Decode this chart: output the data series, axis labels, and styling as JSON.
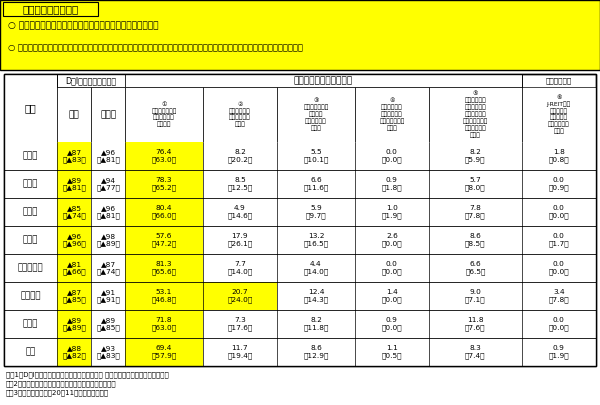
{
  "title": "中小企業の資金繰り",
  "bullet1": "○ 中小企業の資金繰りも、一段と厳しいものとなっている。",
  "bullet2": "○ 要因としては、「営業要因」が最も大きく、その割合は前回よりも上昇。次いで、「金融機関の融資態度・融資条件」が続く。",
  "di_header": "D．I．（良い－悪い）",
  "worsening_header": "悪化の要因（回答割合）",
  "unit": "（単位：％）",
  "sub_headers": [
    "①\n販売不振・在庫\nの長期化等、\n営業要因",
    "②\n融資審査等、\n金融機関の融\n資態度",
    "③\n融資期間・返済\n条件等、\n金融機関の融\n資条件",
    "④\n改正貸金業法\n施行の影響等\nノンバンクの融\n資態度",
    "⑤\n信用保証協会\nや政策金融機\n関等による、\nセーフティネッ\nト貸付・保証\nの動向",
    "⑥\nJ-REIT等証\n券市場の冷\nえ込みや投\n資ファンド等\nの動き"
  ],
  "rows": [
    {
      "name": "製造業",
      "now": "▲87\n（▲83）",
      "future": "▲96\n（▲81）",
      "v1": "76.4\n（63.0）",
      "v2": "8.2\n（20.2）",
      "v3": "5.5\n（10.1）",
      "v4": "0.0\n（0.0）",
      "v5": "8.2\n（5.9）",
      "v6": "1.8\n（0.8）",
      "hl": [
        1,
        3
      ]
    },
    {
      "name": "小売業",
      "now": "▲89\n（▲81）",
      "future": "▲94\n（▲77）",
      "v1": "78.3\n（65.2）",
      "v2": "8.5\n（12.5）",
      "v3": "6.6\n（11.6）",
      "v4": "0.9\n（1.8）",
      "v5": "5.7\n（8.0）",
      "v6": "0.0\n（0.9）",
      "hl": [
        1,
        3
      ]
    },
    {
      "name": "卸売業",
      "now": "▲85\n（▲74）",
      "future": "▲96\n（▲81）",
      "v1": "80.4\n（66.0）",
      "v2": "4.9\n（14.6）",
      "v3": "5.9\n（9.7）",
      "v4": "1.0\n（1.9）",
      "v5": "7.8\n（7.8）",
      "v6": "0.0\n（0.0）",
      "hl": [
        1,
        3
      ]
    },
    {
      "name": "建設業",
      "now": "▲96\n（▲96）",
      "future": "▲98\n（▲89）",
      "v1": "57.6\n（47.2）",
      "v2": "17.9\n（26.1）",
      "v3": "13.2\n（16.5）",
      "v4": "2.6\n（0.0）",
      "v5": "8.6\n（8.5）",
      "v6": "0.0\n（1.7）",
      "hl": [
        1,
        3
      ]
    },
    {
      "name": "サービス業",
      "now": "▲81\n（▲66）",
      "future": "▲87\n（▲74）",
      "v1": "81.3\n（65.6）",
      "v2": "7.7\n（14.0）",
      "v3": "4.4\n（14.0）",
      "v4": "0.0\n（0.0）",
      "v5": "6.6\n（6.5）",
      "v6": "0.0\n（0.0）",
      "hl": [
        1,
        3
      ]
    },
    {
      "name": "不動産業",
      "now": "▲87\n（▲85）",
      "future": "▲91\n（▲91）",
      "v1": "53.1\n（46.8）",
      "v2": "20.7\n（24.0）",
      "v3": "12.4\n（14.3）",
      "v4": "1.4\n（0.0）",
      "v5": "9.0\n（7.1）",
      "v6": "3.4\n（7.8）",
      "hl": [
        1,
        3,
        4
      ]
    },
    {
      "name": "運輸業",
      "now": "▲89\n（▲89）",
      "future": "▲89\n（▲85）",
      "v1": "71.8\n（63.0）",
      "v2": "7.3\n（17.6）",
      "v3": "8.2\n（11.8）",
      "v4": "0.9\n（0.0）",
      "v5": "11.8\n（7.6）",
      "v6": "0.0\n（0.0）",
      "hl": [
        1,
        3
      ]
    },
    {
      "name": "平均",
      "now": "▲88\n（▲82）",
      "future": "▲93\n（▲83）",
      "v1": "69.4\n（57.9）",
      "v2": "11.7\n（19.4）",
      "v3": "8.6\n（12.9）",
      "v4": "1.1\n（0.5）",
      "v5": "8.3\n（7.4）",
      "v6": "0.9\n（1.9）",
      "hl": [
        1,
        3
      ]
    }
  ],
  "notes": [
    "（注1）D．I．＝「良い」と回答した先数構成比 ー「悪い」と回答した先数構成比",
    "（注2）悪化の要因については、複数回答可としている。",
    "（注3）表中の括弧書は20年11月時点の調査結果"
  ],
  "yellow": "#FFFF00",
  "white": "#FFFFFF",
  "black": "#000000"
}
